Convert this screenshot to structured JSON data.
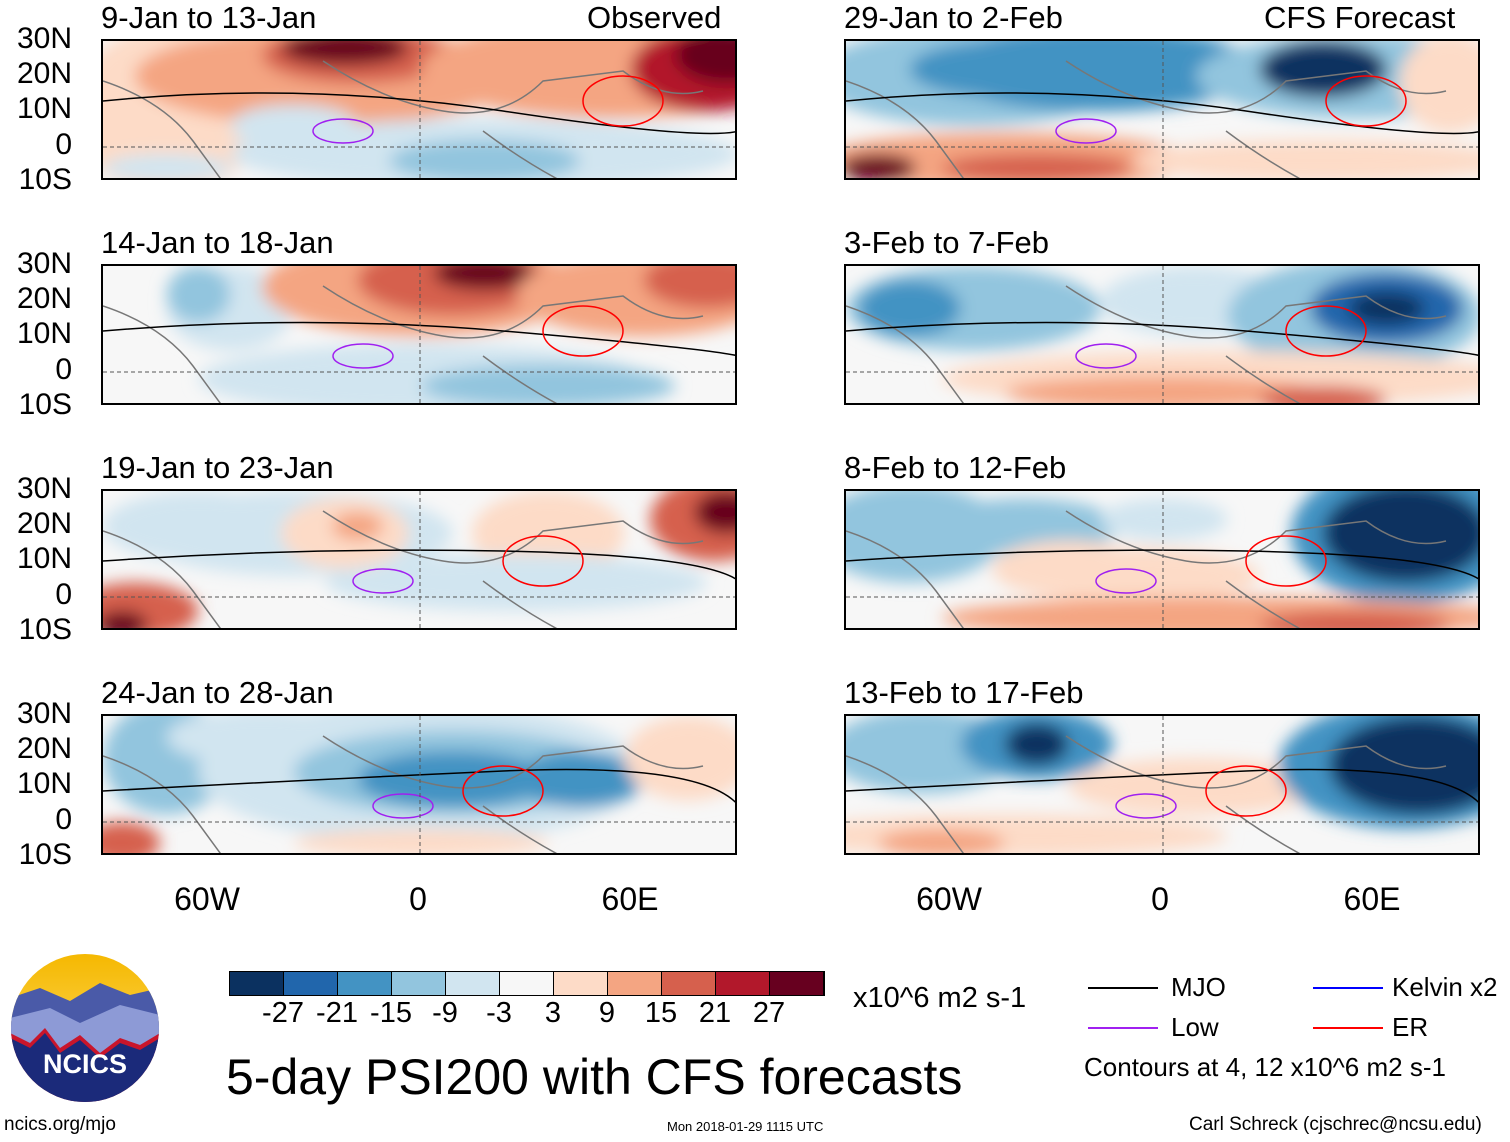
{
  "title": "5-day PSI200 with CFS forecasts",
  "units": "x10^6 m2 s-1",
  "left_column_label": "Observed",
  "right_column_label": "CFS Forecast",
  "panels_left": [
    "9-Jan to 13-Jan",
    "14-Jan to 18-Jan",
    "19-Jan to 23-Jan",
    "24-Jan to 28-Jan"
  ],
  "panels_right": [
    "29-Jan to 2-Feb",
    "3-Feb to 7-Feb",
    "8-Feb to 12-Feb",
    "13-Feb to 17-Feb"
  ],
  "lat_labels": [
    "30N",
    "20N",
    "10N",
    "0",
    "10S"
  ],
  "lon_labels": [
    "60W",
    "0",
    "60E"
  ],
  "colorbar": {
    "labels": [
      "-27",
      "-21",
      "-15",
      "-9",
      "-3",
      "3",
      "9",
      "15",
      "21",
      "27"
    ],
    "colors": [
      "#0b3160",
      "#2166ac",
      "#4393c3",
      "#92c5de",
      "#d1e5f0",
      "#f7f7f7",
      "#fddbc7",
      "#f4a582",
      "#d6604d",
      "#b2182b",
      "#67001f"
    ]
  },
  "legend": {
    "items": [
      {
        "label": "MJO",
        "color": "#000000"
      },
      {
        "label": "Kelvin x2",
        "color": "#0000ff"
      },
      {
        "label": "Low",
        "color": "#a020f0"
      },
      {
        "label": "ER",
        "color": "#ff0000"
      }
    ],
    "note": "Contours at 4, 12 x10^6 m2 s-1"
  },
  "logo_text": "NCICS",
  "footer": {
    "left": "ncics.org/mjo",
    "center": "Mon 2018-01-29 1115 UTC",
    "right": "Carl Schreck (cjschrec@ncsu.edu)"
  }
}
